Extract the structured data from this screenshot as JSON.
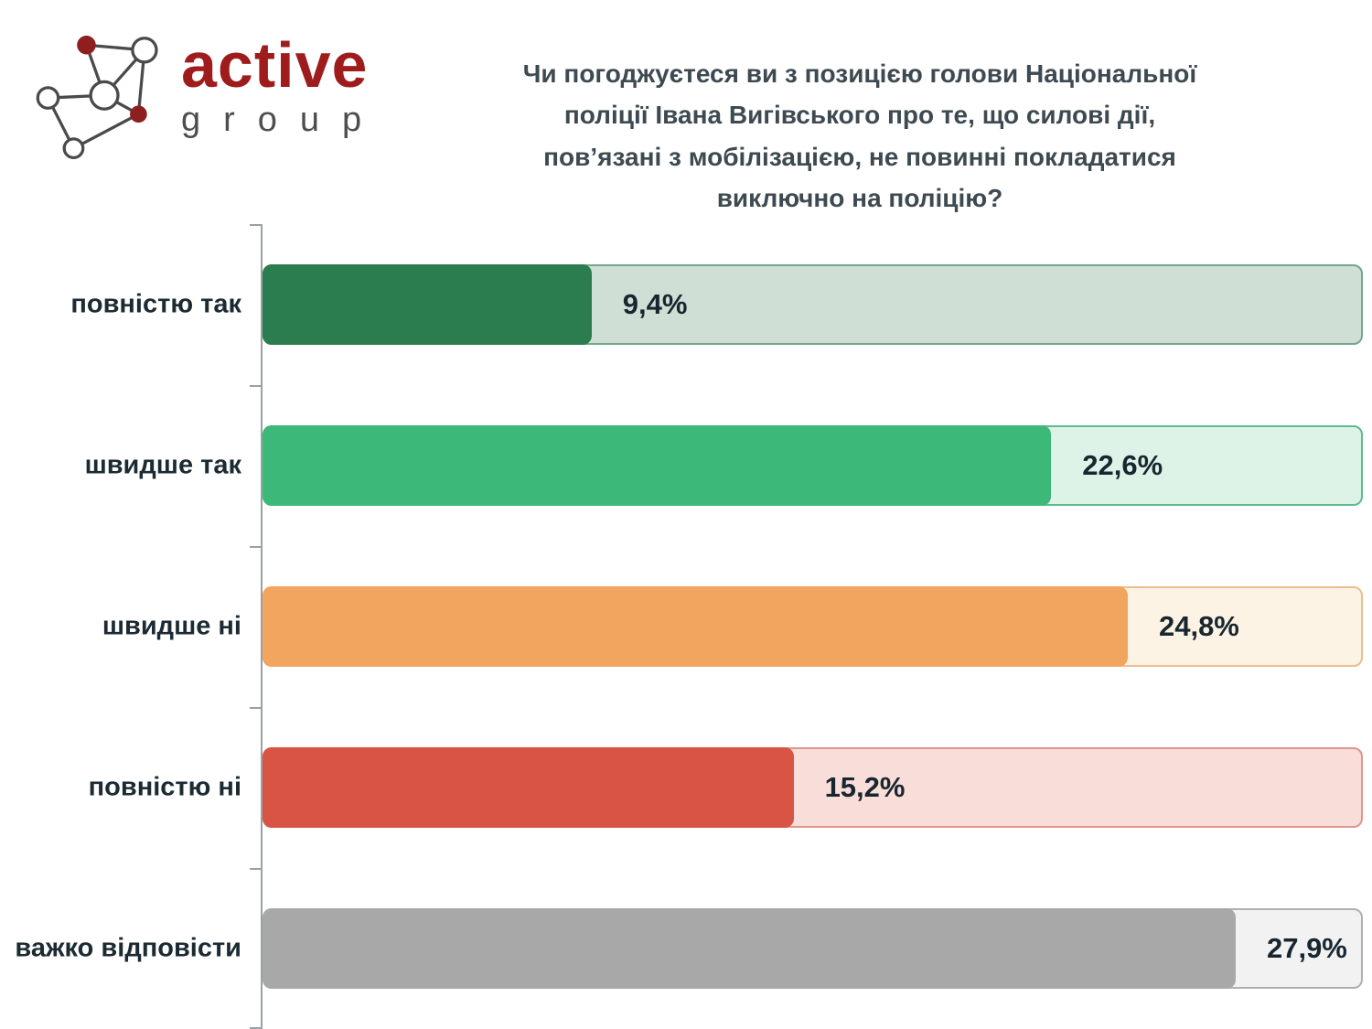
{
  "logo": {
    "brand_top": "active",
    "brand_bottom": "group",
    "brand_color": "#9e1c1c",
    "sub_color": "#4e4e4e"
  },
  "title": {
    "text": "Чи погоджуєтеся ви з позицією голови Національної\nполіції Івана Вигівського про те, що силові дії,\nпов’язані з мобілізацією, не повинні покладатися\nвиключно на поліцію?"
  },
  "chart_data": {
    "type": "bar",
    "orientation": "horizontal",
    "title": "Чи погоджуєтеся ви з позицією голови Національної поліції Івана Вигівського про те, що силові дії, пов’язані з мобілізацією, не повинні покладатися виключно на поліцію?",
    "categories": [
      "повністю так",
      "швидше так",
      "швидше ні",
      "повністю ні",
      "важко відповісти"
    ],
    "values": [
      9.4,
      22.6,
      24.8,
      15.2,
      27.9
    ],
    "value_labels": [
      "9,4%",
      "22,6%",
      "24,8%",
      "15,2%",
      "27,9%"
    ],
    "xlim": [
      0,
      31.5
    ],
    "grid": false,
    "legend": false,
    "bar_colors": [
      "#2b7d4f",
      "#3cb878",
      "#f2a55e",
      "#d85445",
      "#a8a8a8"
    ],
    "track_fills": [
      "#cfdfd6",
      "#def3e8",
      "#fdf3e4",
      "#f8ddd9",
      "#f2f2f2"
    ],
    "track_borders": [
      "#74a88c",
      "#5bbd8b",
      "#eebd8c",
      "#e0968c",
      "#b0b0b0"
    ]
  }
}
